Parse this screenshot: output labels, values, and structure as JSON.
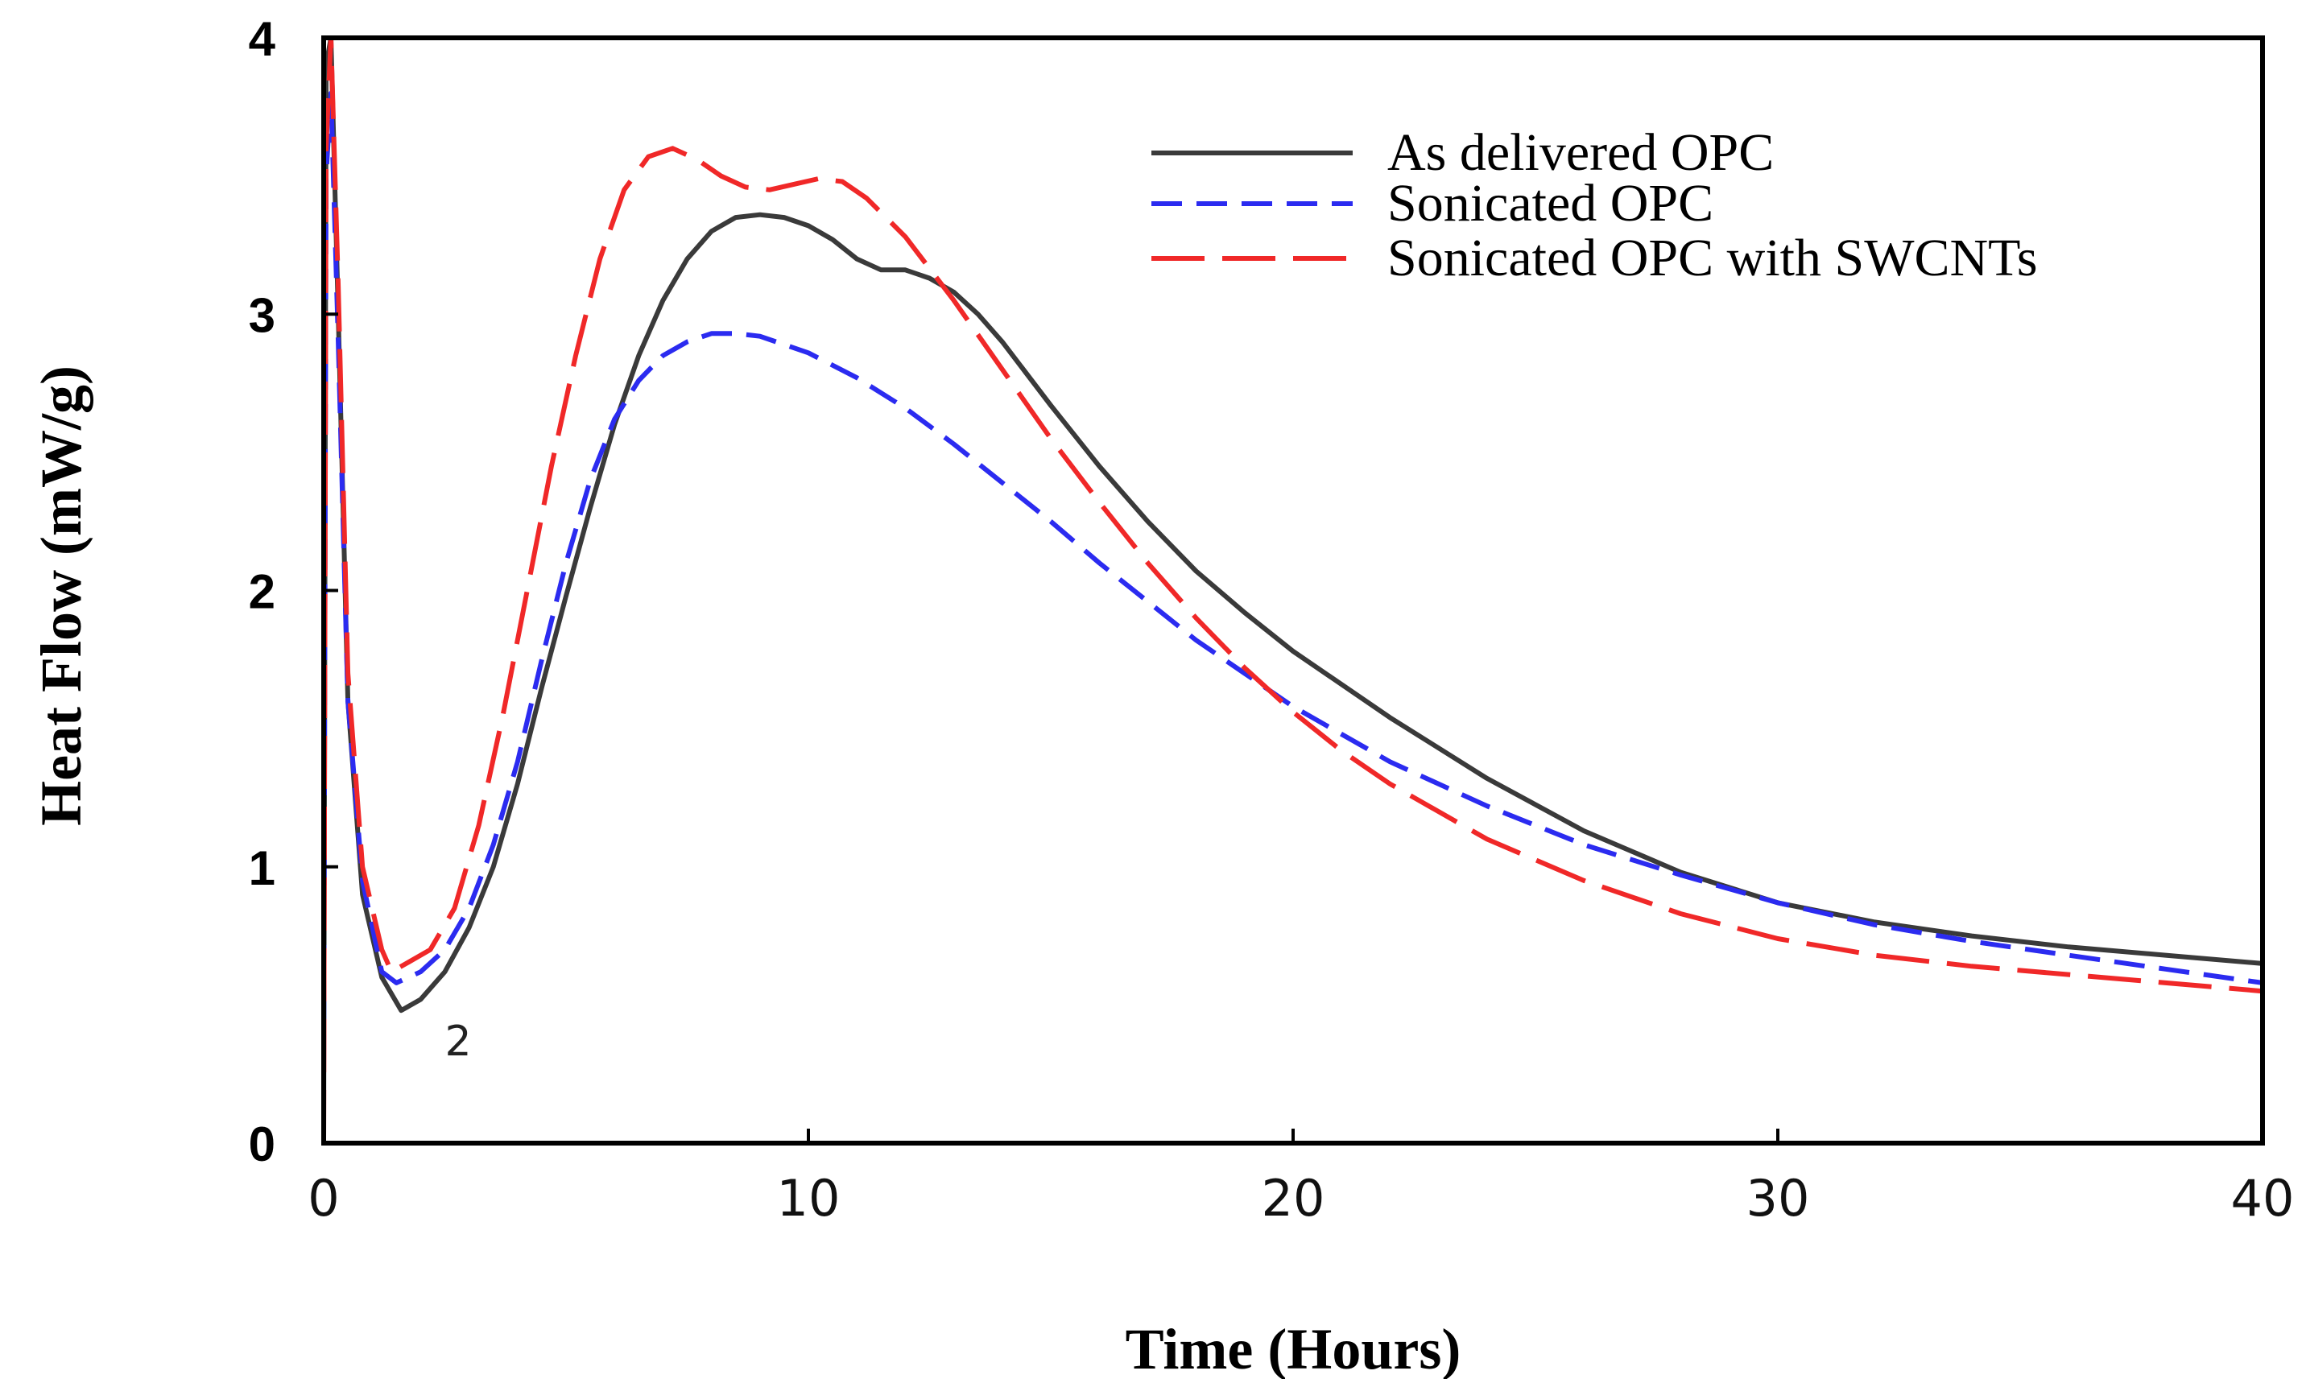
{
  "chart_data": {
    "type": "line",
    "title": "",
    "xlabel": "Time (Hours)",
    "ylabel": "Heat Flow (mW/g)",
    "xlim": [
      0,
      40
    ],
    "ylim": [
      0,
      4
    ],
    "x_ticks": [
      "0",
      "10",
      "20",
      "30",
      "40"
    ],
    "y_ticks": [
      "0",
      "1",
      "2",
      "3",
      "4"
    ],
    "grid": false,
    "legend_position": "top-right",
    "annotations": [
      {
        "text": "2",
        "x": 2.5,
        "y": 0.42
      }
    ],
    "series": [
      {
        "name": "As delivered OPC",
        "color": "#3a3a3a",
        "style": "solid",
        "points": [
          [
            0,
            0
          ],
          [
            0.05,
            3.9
          ],
          [
            0.15,
            4.0
          ],
          [
            0.3,
            3.0
          ],
          [
            0.5,
            1.6
          ],
          [
            0.8,
            0.9
          ],
          [
            1.2,
            0.6
          ],
          [
            1.6,
            0.48
          ],
          [
            2.0,
            0.52
          ],
          [
            2.5,
            0.62
          ],
          [
            3.0,
            0.78
          ],
          [
            3.5,
            1.0
          ],
          [
            4.0,
            1.3
          ],
          [
            4.5,
            1.65
          ],
          [
            5.0,
            1.98
          ],
          [
            5.5,
            2.3
          ],
          [
            6.0,
            2.6
          ],
          [
            6.5,
            2.85
          ],
          [
            7.0,
            3.05
          ],
          [
            7.5,
            3.2
          ],
          [
            8.0,
            3.3
          ],
          [
            8.5,
            3.35
          ],
          [
            9.0,
            3.36
          ],
          [
            9.5,
            3.35
          ],
          [
            10.0,
            3.32
          ],
          [
            10.5,
            3.27
          ],
          [
            11.0,
            3.2
          ],
          [
            11.5,
            3.16
          ],
          [
            12.0,
            3.16
          ],
          [
            12.5,
            3.13
          ],
          [
            13.0,
            3.08
          ],
          [
            13.5,
            3.0
          ],
          [
            14.0,
            2.9
          ],
          [
            15.0,
            2.67
          ],
          [
            16.0,
            2.45
          ],
          [
            17.0,
            2.25
          ],
          [
            18.0,
            2.07
          ],
          [
            19.0,
            1.92
          ],
          [
            20.0,
            1.78
          ],
          [
            22.0,
            1.54
          ],
          [
            24.0,
            1.32
          ],
          [
            26.0,
            1.13
          ],
          [
            28.0,
            0.98
          ],
          [
            30.0,
            0.87
          ],
          [
            32.0,
            0.8
          ],
          [
            34.0,
            0.75
          ],
          [
            36.0,
            0.71
          ],
          [
            38.0,
            0.68
          ],
          [
            40.0,
            0.65
          ]
        ]
      },
      {
        "name": "Sonicated OPC",
        "color": "#2b2bf0",
        "style": "dashed",
        "points": [
          [
            0,
            0.28
          ],
          [
            0.05,
            3.5
          ],
          [
            0.15,
            3.8
          ],
          [
            0.3,
            2.9
          ],
          [
            0.5,
            1.6
          ],
          [
            0.8,
            0.95
          ],
          [
            1.2,
            0.62
          ],
          [
            1.5,
            0.58
          ],
          [
            2.0,
            0.62
          ],
          [
            2.5,
            0.7
          ],
          [
            3.0,
            0.85
          ],
          [
            3.5,
            1.08
          ],
          [
            4.0,
            1.38
          ],
          [
            4.5,
            1.75
          ],
          [
            5.0,
            2.1
          ],
          [
            5.5,
            2.4
          ],
          [
            6.0,
            2.62
          ],
          [
            6.5,
            2.76
          ],
          [
            7.0,
            2.85
          ],
          [
            7.5,
            2.9
          ],
          [
            8.0,
            2.93
          ],
          [
            8.5,
            2.93
          ],
          [
            9.0,
            2.92
          ],
          [
            10.0,
            2.86
          ],
          [
            11.0,
            2.77
          ],
          [
            12.0,
            2.66
          ],
          [
            13.0,
            2.53
          ],
          [
            14.0,
            2.39
          ],
          [
            15.0,
            2.25
          ],
          [
            16.0,
            2.1
          ],
          [
            17.0,
            1.96
          ],
          [
            18.0,
            1.82
          ],
          [
            19.0,
            1.7
          ],
          [
            20.0,
            1.58
          ],
          [
            22.0,
            1.38
          ],
          [
            24.0,
            1.22
          ],
          [
            26.0,
            1.08
          ],
          [
            28.0,
            0.97
          ],
          [
            30.0,
            0.87
          ],
          [
            32.0,
            0.79
          ],
          [
            34.0,
            0.73
          ],
          [
            36.0,
            0.68
          ],
          [
            38.0,
            0.63
          ],
          [
            40.0,
            0.58
          ]
        ]
      },
      {
        "name": "Sonicated OPC with SWCNTs",
        "color": "#f02828",
        "style": "long-dash",
        "points": [
          [
            0,
            0
          ],
          [
            0.05,
            3.6
          ],
          [
            0.15,
            4.0
          ],
          [
            0.3,
            3.1
          ],
          [
            0.5,
            1.7
          ],
          [
            0.8,
            1.0
          ],
          [
            1.2,
            0.7
          ],
          [
            1.4,
            0.62
          ],
          [
            1.8,
            0.66
          ],
          [
            2.2,
            0.7
          ],
          [
            2.7,
            0.85
          ],
          [
            3.2,
            1.15
          ],
          [
            3.7,
            1.55
          ],
          [
            4.2,
            2.0
          ],
          [
            4.7,
            2.45
          ],
          [
            5.2,
            2.85
          ],
          [
            5.7,
            3.2
          ],
          [
            6.2,
            3.45
          ],
          [
            6.7,
            3.57
          ],
          [
            7.2,
            3.6
          ],
          [
            7.7,
            3.56
          ],
          [
            8.2,
            3.5
          ],
          [
            8.7,
            3.46
          ],
          [
            9.2,
            3.45
          ],
          [
            9.7,
            3.47
          ],
          [
            10.2,
            3.49
          ],
          [
            10.7,
            3.48
          ],
          [
            11.2,
            3.42
          ],
          [
            12.0,
            3.28
          ],
          [
            13.0,
            3.05
          ],
          [
            14.0,
            2.8
          ],
          [
            15.0,
            2.55
          ],
          [
            16.0,
            2.32
          ],
          [
            17.0,
            2.1
          ],
          [
            18.0,
            1.9
          ],
          [
            19.0,
            1.72
          ],
          [
            20.0,
            1.56
          ],
          [
            21.0,
            1.42
          ],
          [
            22.0,
            1.3
          ],
          [
            24.0,
            1.1
          ],
          [
            26.0,
            0.95
          ],
          [
            28.0,
            0.83
          ],
          [
            30.0,
            0.74
          ],
          [
            32.0,
            0.68
          ],
          [
            34.0,
            0.64
          ],
          [
            36.0,
            0.61
          ],
          [
            38.0,
            0.58
          ],
          [
            40.0,
            0.55
          ]
        ]
      }
    ]
  }
}
